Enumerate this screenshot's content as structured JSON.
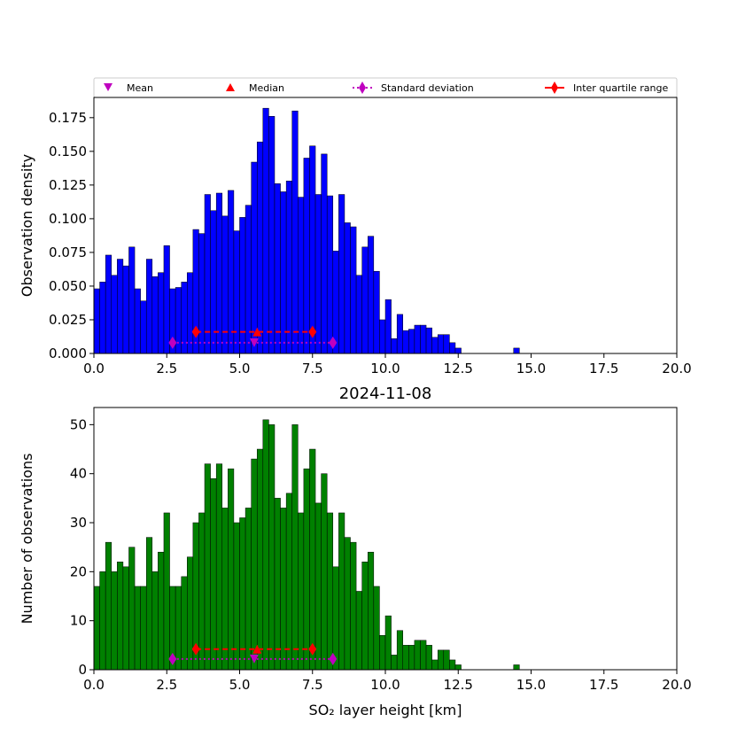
{
  "chart_data": [
    {
      "type": "bar",
      "panel": "density",
      "title": "",
      "xlabel": "",
      "ylabel": "Observation density",
      "xlim": [
        0,
        20
      ],
      "ylim": [
        0,
        0.19
      ],
      "xticks": [
        "0.0",
        "2.5",
        "5.0",
        "7.5",
        "10.0",
        "12.5",
        "15.0",
        "17.5",
        "20.0"
      ],
      "yticks": [
        "0.000",
        "0.025",
        "0.050",
        "0.075",
        "0.100",
        "0.125",
        "0.150",
        "0.175"
      ],
      "ytick_values": [
        0,
        0.025,
        0.05,
        0.075,
        0.1,
        0.125,
        0.15,
        0.175
      ],
      "bin_start": 0,
      "bin_width": 0.2,
      "bar_color": "#0000ff",
      "values": [
        0.048,
        0.053,
        0.073,
        0.058,
        0.07,
        0.065,
        0.079,
        0.048,
        0.039,
        0.07,
        0.057,
        0.06,
        0.08,
        0.048,
        0.049,
        0.053,
        0.06,
        0.092,
        0.089,
        0.118,
        0.106,
        0.119,
        0.102,
        0.121,
        0.091,
        0.101,
        0.11,
        0.142,
        0.157,
        0.182,
        0.176,
        0.126,
        0.12,
        0.128,
        0.18,
        0.116,
        0.145,
        0.154,
        0.118,
        0.148,
        0.117,
        0.076,
        0.118,
        0.097,
        0.094,
        0.058,
        0.079,
        0.087,
        0.061,
        0.025,
        0.04,
        0.011,
        0.029,
        0.017,
        0.018,
        0.021,
        0.021,
        0.019,
        0.012,
        0.014,
        0.014,
        0.008,
        0.004,
        0,
        0,
        0,
        0,
        0,
        0,
        0,
        0,
        0,
        0.004
      ],
      "mean": 5.5,
      "median": 5.6,
      "std_range": [
        2.7,
        8.2
      ],
      "iqr_range": [
        3.5,
        7.5
      ],
      "std_y": 0.008,
      "iqr_y": 0.016
    },
    {
      "type": "bar",
      "panel": "count",
      "title": "2024-11-08",
      "xlabel": "SO₂ layer height [km]",
      "ylabel": "Number of observations",
      "xlim": [
        0,
        20
      ],
      "ylim": [
        0,
        53.5
      ],
      "xticks": [
        "0.0",
        "2.5",
        "5.0",
        "7.5",
        "10.0",
        "12.5",
        "15.0",
        "17.5",
        "20.0"
      ],
      "yticks": [
        "0",
        "10",
        "20",
        "30",
        "40",
        "50"
      ],
      "ytick_values": [
        0,
        10,
        20,
        30,
        40,
        50
      ],
      "bin_start": 0,
      "bin_width": 0.2,
      "bar_color": "#008000",
      "values": [
        17,
        20,
        26,
        20,
        22,
        21,
        25,
        17,
        17,
        27,
        20,
        24,
        32,
        17,
        17,
        19,
        23,
        30,
        32,
        42,
        39,
        42,
        33,
        41,
        30,
        31,
        33,
        43,
        45,
        51,
        50,
        35,
        33,
        36,
        50,
        32,
        41,
        45,
        34,
        40,
        32,
        21,
        32,
        27,
        26,
        16,
        22,
        24,
        17,
        7,
        11,
        3,
        8,
        5,
        5,
        6,
        6,
        5,
        2,
        4,
        4,
        2,
        1,
        0,
        0,
        0,
        0,
        0,
        0,
        0,
        0,
        0,
        1
      ],
      "mean": 5.5,
      "median": 5.6,
      "std_range": [
        2.7,
        8.2
      ],
      "iqr_range": [
        3.5,
        7.5
      ],
      "std_y": 2.2,
      "iqr_y": 4.2
    }
  ],
  "legend": {
    "entries": [
      {
        "label": "Mean",
        "marker": "triangle-down",
        "color": "#bf00bf"
      },
      {
        "label": "Median",
        "marker": "triangle-up",
        "color": "#ff0000"
      },
      {
        "label": "Standard deviation",
        "marker": "diamond",
        "color": "#bf00bf",
        "line": "dotted"
      },
      {
        "label": "Inter quartile range",
        "marker": "diamond",
        "color": "#ff0000",
        "line": "solid"
      }
    ]
  }
}
